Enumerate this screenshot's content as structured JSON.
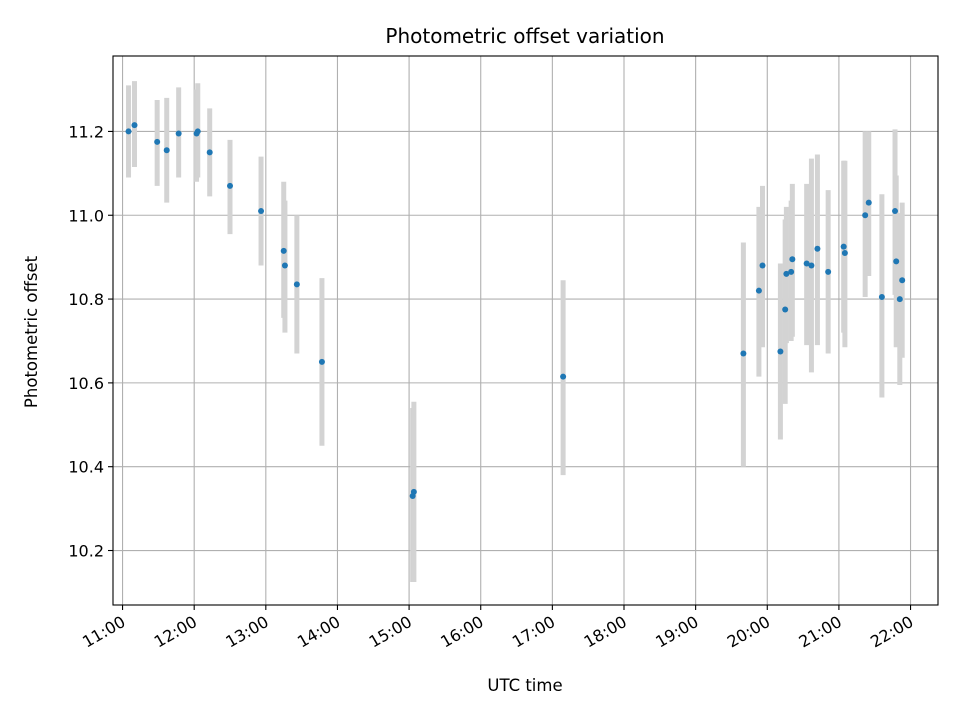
{
  "chart_data": {
    "type": "scatter",
    "title": "Photometric offset variation",
    "xlabel": "UTC time",
    "ylabel": "Photometric offset",
    "xlim": [
      "10:52",
      "22:23"
    ],
    "ylim": [
      10.07,
      11.38
    ],
    "grid": true,
    "x_ticks": [
      "11:00",
      "12:00",
      "13:00",
      "14:00",
      "15:00",
      "16:00",
      "17:00",
      "18:00",
      "19:00",
      "20:00",
      "21:00",
      "22:00"
    ],
    "y_ticks": [
      10.2,
      10.4,
      10.6,
      10.8,
      11.0,
      11.2
    ],
    "colors": {
      "points": "#1f77b4",
      "errorbars": "#d3d3d3",
      "grid": "#b0b0b0"
    },
    "points": [
      {
        "time": "11:05",
        "y": 11.2,
        "lo": 11.09,
        "hi": 11.31
      },
      {
        "time": "11:10",
        "y": 11.215,
        "lo": 11.115,
        "hi": 11.32
      },
      {
        "time": "11:29",
        "y": 11.175,
        "lo": 11.07,
        "hi": 11.275
      },
      {
        "time": "11:37",
        "y": 11.155,
        "lo": 11.03,
        "hi": 11.28
      },
      {
        "time": "11:47",
        "y": 11.195,
        "lo": 11.09,
        "hi": 11.305
      },
      {
        "time": "12:02",
        "y": 11.195,
        "lo": 11.08,
        "hi": 11.3
      },
      {
        "time": "12:03",
        "y": 11.2,
        "lo": 11.09,
        "hi": 11.315
      },
      {
        "time": "12:13",
        "y": 11.15,
        "lo": 11.045,
        "hi": 11.255
      },
      {
        "time": "12:30",
        "y": 11.07,
        "lo": 10.955,
        "hi": 11.18
      },
      {
        "time": "12:56",
        "y": 11.01,
        "lo": 10.88,
        "hi": 11.14
      },
      {
        "time": "13:15",
        "y": 10.915,
        "lo": 10.755,
        "hi": 11.08
      },
      {
        "time": "13:16",
        "y": 10.88,
        "lo": 10.72,
        "hi": 11.035
      },
      {
        "time": "13:26",
        "y": 10.835,
        "lo": 10.67,
        "hi": 11.0
      },
      {
        "time": "13:47",
        "y": 10.65,
        "lo": 10.45,
        "hi": 10.85
      },
      {
        "time": "15:03",
        "y": 10.33,
        "lo": 10.125,
        "hi": 10.54
      },
      {
        "time": "15:04",
        "y": 10.34,
        "lo": 10.125,
        "hi": 10.555
      },
      {
        "time": "17:09",
        "y": 10.615,
        "lo": 10.38,
        "hi": 10.845
      },
      {
        "time": "19:40",
        "y": 10.67,
        "lo": 10.4,
        "hi": 10.935
      },
      {
        "time": "19:53",
        "y": 10.82,
        "lo": 10.615,
        "hi": 11.02
      },
      {
        "time": "19:56",
        "y": 10.88,
        "lo": 10.685,
        "hi": 11.07
      },
      {
        "time": "20:11",
        "y": 10.675,
        "lo": 10.465,
        "hi": 10.885
      },
      {
        "time": "20:15",
        "y": 10.775,
        "lo": 10.55,
        "hi": 10.99
      },
      {
        "time": "20:16",
        "y": 10.86,
        "lo": 10.695,
        "hi": 11.02
      },
      {
        "time": "20:20",
        "y": 10.865,
        "lo": 10.7,
        "hi": 11.035
      },
      {
        "time": "20:21",
        "y": 10.895,
        "lo": 10.71,
        "hi": 11.075
      },
      {
        "time": "20:33",
        "y": 10.885,
        "lo": 10.69,
        "hi": 11.075
      },
      {
        "time": "20:37",
        "y": 10.88,
        "lo": 10.625,
        "hi": 11.135
      },
      {
        "time": "20:42",
        "y": 10.92,
        "lo": 10.69,
        "hi": 11.145
      },
      {
        "time": "20:51",
        "y": 10.865,
        "lo": 10.67,
        "hi": 11.06
      },
      {
        "time": "21:04",
        "y": 10.925,
        "lo": 10.72,
        "hi": 11.13
      },
      {
        "time": "21:05",
        "y": 10.91,
        "lo": 10.685,
        "hi": 11.13
      },
      {
        "time": "21:22",
        "y": 11.0,
        "lo": 10.805,
        "hi": 11.2
      },
      {
        "time": "21:25",
        "y": 11.03,
        "lo": 10.855,
        "hi": 11.2
      },
      {
        "time": "21:36",
        "y": 10.805,
        "lo": 10.565,
        "hi": 11.05
      },
      {
        "time": "21:47",
        "y": 11.01,
        "lo": 10.81,
        "hi": 11.205
      },
      {
        "time": "21:48",
        "y": 10.89,
        "lo": 10.685,
        "hi": 11.095
      },
      {
        "time": "21:51",
        "y": 10.8,
        "lo": 10.595,
        "hi": 11.005
      },
      {
        "time": "21:53",
        "y": 10.845,
        "lo": 10.66,
        "hi": 11.03
      }
    ]
  }
}
